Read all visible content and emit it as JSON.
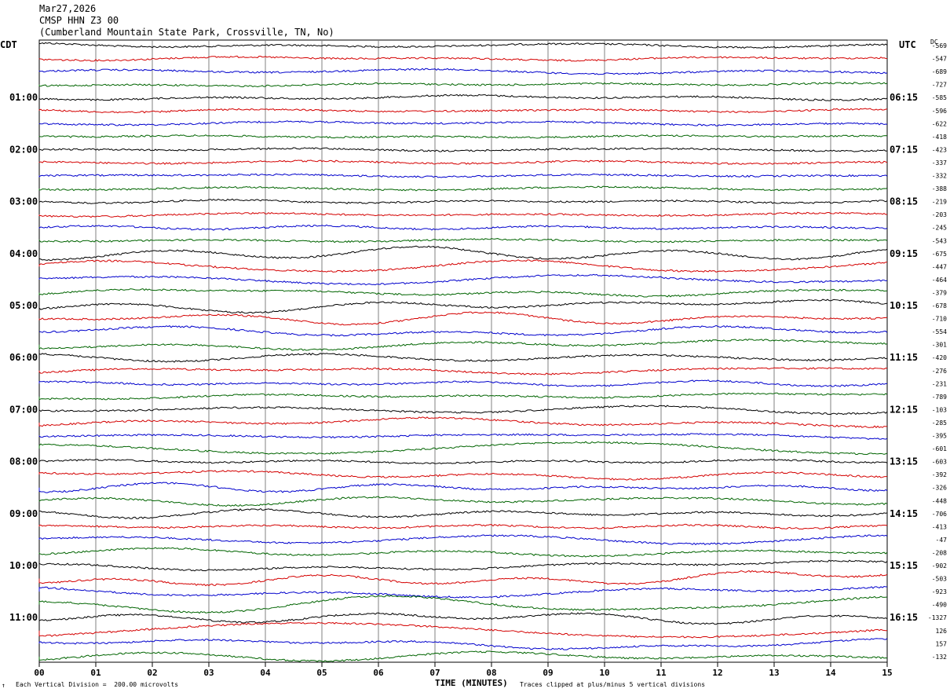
{
  "header": {
    "date": "Mar27,2026",
    "station": "CMSP HHN Z3 00",
    "location": "(Cumberland Mountain State Park, Crossville, TN, No)"
  },
  "left_axis_label": "CDT",
  "right_axis_label": "UTC",
  "dc_label": "DC",
  "footer": {
    "scale_note": "Each Vertical Division =  200.00 microvolts",
    "xlabel": "TIME (MINUTES)",
    "clip_note": "Traces clipped at plus/minus 5 vertical divisions",
    "corner_mark": "↑"
  },
  "chart_data": {
    "type": "line",
    "title": "CMSP HHN Z3 00",
    "xlabel": "TIME (MINUTES)",
    "xlim": [
      0,
      15
    ],
    "x_ticks": [
      "00",
      "01",
      "02",
      "03",
      "04",
      "05",
      "06",
      "07",
      "08",
      "09",
      "10",
      "11",
      "12",
      "13",
      "14",
      "15"
    ],
    "grid": true,
    "trace_colors": [
      "#000000",
      "#d40000",
      "#0000cc",
      "#006400"
    ],
    "trace_count": 48,
    "local_time_labels": [
      "01:00",
      "02:00",
      "03:00",
      "04:00",
      "05:00",
      "06:00",
      "07:00",
      "08:00",
      "09:00",
      "10:00",
      "11:00"
    ],
    "utc_time_labels": [
      "06:15",
      "07:15",
      "08:15",
      "09:15",
      "10:15",
      "11:15",
      "12:15",
      "13:15",
      "14:15",
      "15:15",
      "16:15"
    ],
    "dc_offsets": [
      "-569",
      "-547",
      "-689",
      "-727",
      "-585",
      "-596",
      "-622",
      "-418",
      "-423",
      "-337",
      "-332",
      "-388",
      "-219",
      "-203",
      "-245",
      "-543",
      "-675",
      "-447",
      "-464",
      "-379",
      "-678",
      "-710",
      "-554",
      "-301",
      "-420",
      "-276",
      "-231",
      "-789",
      "-103",
      "-285",
      "-395",
      "-601",
      "-603",
      "-392",
      "-326",
      "-448",
      "-706",
      "-413",
      "-47",
      "-208",
      "-902",
      "-503",
      "-923",
      "-490",
      "-1327",
      "126",
      "157",
      "-132"
    ]
  }
}
